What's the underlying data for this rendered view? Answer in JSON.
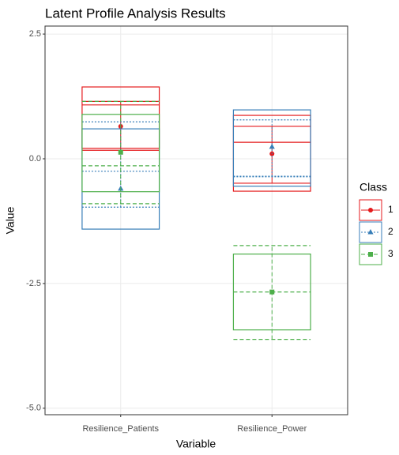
{
  "chart_data": {
    "type": "profile_box",
    "title": "Latent Profile Analysis Results",
    "x_label": "Variable",
    "y_label": "Value",
    "categories": [
      "Resilience_Patients",
      "Resilience_Power"
    ],
    "ylim": [
      -5.13,
      2.66
    ],
    "yticks": [
      2.5,
      {
        "value": 0,
        "label": "0.0"
      },
      -2.5,
      {
        "value": -5,
        "label": "-5.0"
      }
    ],
    "grid": true,
    "legend_title": "Class",
    "legend_position": "right",
    "series": [
      {
        "name": "1",
        "color": "#e41a1c",
        "linetype": "solid",
        "shape": "circle",
        "values": [
          0.65,
          0.1
        ],
        "q1": [
          0.21,
          -0.65
        ],
        "median": [
          1.08,
          0.33
        ],
        "q3": [
          1.44,
          0.87
        ],
        "lower": [
          0.17,
          -0.49
        ],
        "upper": [
          1.15,
          0.65
        ]
      },
      {
        "name": "2",
        "color": "#377eb8",
        "linetype": "dotted",
        "shape": "triangle",
        "values": [
          -0.6,
          0.24
        ],
        "q1": [
          -1.41,
          -0.55
        ],
        "median": [
          -0.25,
          -0.36
        ],
        "q3": [
          0.6,
          0.98
        ],
        "lower": [
          -0.97,
          -0.35
        ],
        "upper": [
          0.74,
          0.78
        ]
      },
      {
        "name": "3",
        "color": "#4daf4a",
        "linetype": "dashed",
        "shape": "square",
        "values": [
          0.13,
          -2.67
        ],
        "q1": [
          -0.66,
          -3.43
        ],
        "median": [
          -0.14,
          -2.67
        ],
        "q3": [
          0.89,
          -1.91
        ],
        "lower": [
          -0.9,
          -3.62
        ],
        "upper": [
          1.15,
          -1.74
        ]
      }
    ]
  }
}
